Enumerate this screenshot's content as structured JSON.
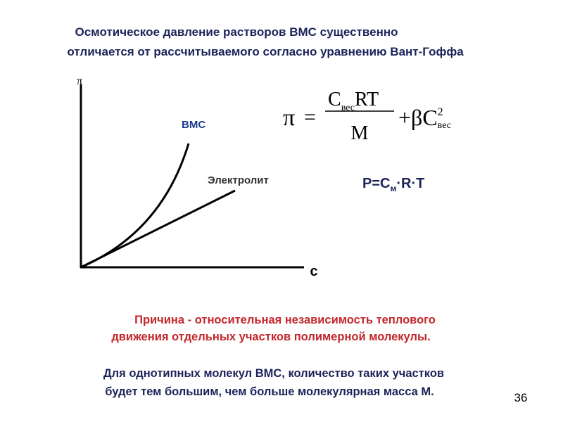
{
  "header": {
    "lines": [
      "Осмотическое давление растворов ВМС существенно",
      "отличается от рассчитываемого согласно уравнению Вант-Гоффа"
    ]
  },
  "graph": {
    "y_axis_label": "π",
    "x_axis_label": "c",
    "curves": [
      {
        "label": "ВМС"
      },
      {
        "label": "Электролит"
      }
    ]
  },
  "formula_1": {
    "lhs": "π",
    "equals": "=",
    "numerator": {
      "base": "C",
      "subscript": "вес",
      "rest": "RT"
    },
    "denominator": "M",
    "term": "+βC",
    "superscript": "2",
    "subscript": "вес"
  },
  "formula_2": {
    "start": "P=C",
    "subscript": "м",
    "rest": "·R·T"
  },
  "reason": {
    "lines": [
      "Причина - относительная независимость теплового",
      "движения отдельных участков полимерной молекулы."
    ]
  },
  "note": {
    "lines": [
      "Для однотипных молекул ВМС, количество таких участков",
      "будет тем большим, чем больше молекулярная масса М."
    ]
  },
  "page_number": "36"
}
